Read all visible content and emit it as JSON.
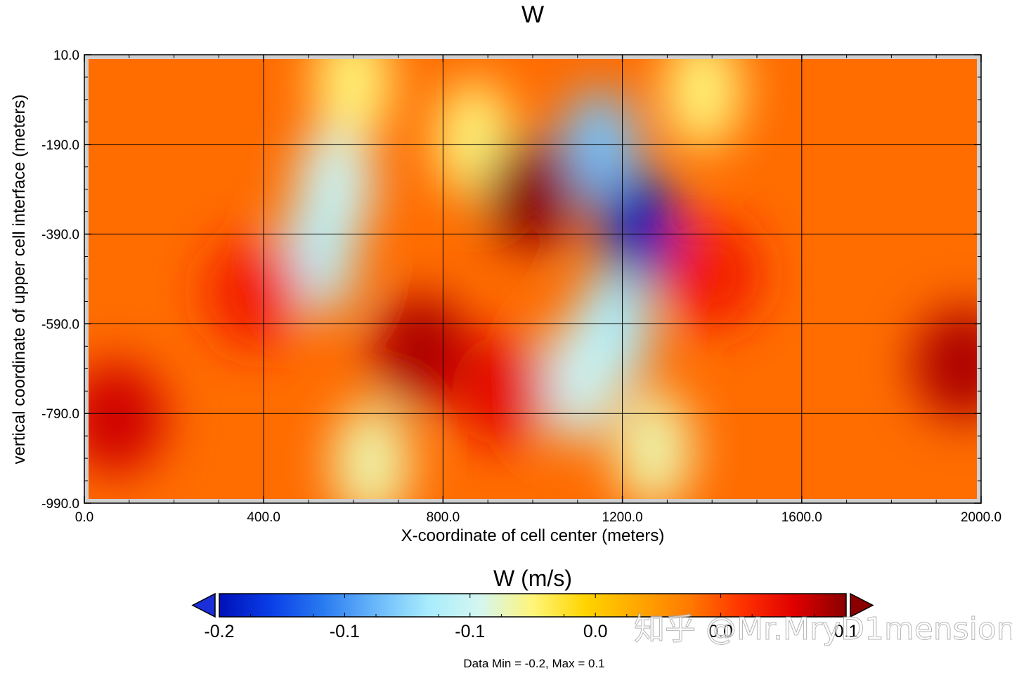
{
  "chart_data": {
    "type": "heatmap",
    "title": "W",
    "xlabel": "X-coordinate of cell center (meters)",
    "ylabel": "vertical coordinate of upper cell interface (meters)",
    "xlim": [
      0,
      2000
    ],
    "ylim": [
      -990,
      10
    ],
    "x_ticks": [
      "0.0",
      "400.0",
      "800.0",
      "1200.0",
      "1600.0",
      "2000.0"
    ],
    "y_ticks": [
      "10.0",
      "-190.0",
      "-390.0",
      "-590.0",
      "-790.0",
      "-990.0"
    ],
    "grid": true,
    "colorbar": {
      "title": "W (m/s)",
      "range": [
        -0.2,
        0.1
      ],
      "tick_labels": [
        "-0.2",
        "-0.1",
        "-0.1",
        "0.0",
        "0.0",
        "0.1"
      ],
      "extend": "both",
      "colors": [
        "#0010b8",
        "#0a3fe8",
        "#2a7bf0",
        "#6ab8fb",
        "#a8ecfd",
        "#d5f6f0",
        "#fff57a",
        "#ffd400",
        "#ffa800",
        "#ff7a00",
        "#ff3300",
        "#e00000",
        "#8a0000"
      ]
    },
    "background_value": 0.03,
    "features": [
      {
        "kind": "downdraft",
        "x": 560,
        "y": -280,
        "w": -0.08
      },
      {
        "kind": "downdraft",
        "x": 520,
        "y": -440,
        "w": -0.09
      },
      {
        "kind": "downdraft",
        "x": 870,
        "y": -180,
        "w": -0.05
      },
      {
        "kind": "downdraft",
        "x": 1150,
        "y": -200,
        "w": -0.12
      },
      {
        "kind": "downdraft",
        "x": 1240,
        "y": -380,
        "w": -0.2
      },
      {
        "kind": "downdraft",
        "x": 1180,
        "y": -600,
        "w": -0.1
      },
      {
        "kind": "downdraft",
        "x": 1100,
        "y": -720,
        "w": -0.08
      },
      {
        "kind": "downdraft",
        "x": 1270,
        "y": -870,
        "w": -0.06
      },
      {
        "kind": "downdraft",
        "x": 640,
        "y": -900,
        "w": -0.06
      },
      {
        "kind": "downdraft",
        "x": 600,
        "y": -50,
        "w": -0.05
      },
      {
        "kind": "downdraft",
        "x": 1380,
        "y": -70,
        "w": -0.05
      },
      {
        "kind": "updraft",
        "x": 1000,
        "y": -300,
        "w": 0.1
      },
      {
        "kind": "updraft",
        "x": 750,
        "y": -650,
        "w": 0.09
      },
      {
        "kind": "updraft",
        "x": 930,
        "y": -740,
        "w": 0.07
      },
      {
        "kind": "updraft",
        "x": 70,
        "y": -800,
        "w": 0.08
      },
      {
        "kind": "updraft",
        "x": 1960,
        "y": -680,
        "w": 0.09
      },
      {
        "kind": "updraft",
        "x": 1400,
        "y": -480,
        "w": 0.06
      },
      {
        "kind": "updraft",
        "x": 380,
        "y": -520,
        "w": 0.06
      }
    ],
    "data_summary": "Data Min = -0.2, Max = 0.1"
  },
  "watermark": "知乎 @Mr.MryD1mension"
}
